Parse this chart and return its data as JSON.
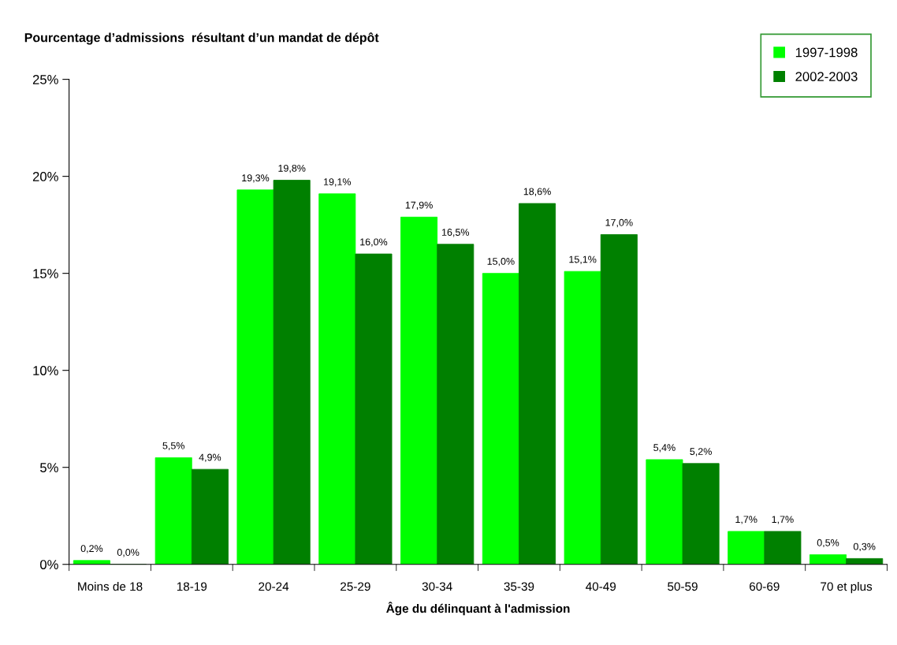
{
  "chart_data": {
    "type": "bar",
    "title": "Pourcentage d’admissions  résultant d’un mandat de dépôt",
    "xlabel": "Âge du délinquant à l'admission",
    "categories": [
      "Moins de 18",
      "18-19",
      "20-24",
      "25-29",
      "30-34",
      "35-39",
      "40-49",
      "50-59",
      "60-69",
      "70 et plus"
    ],
    "series": [
      {
        "name": "1997-1998",
        "color": "#00ff00",
        "values": [
          0.2,
          5.5,
          19.3,
          19.1,
          17.9,
          15.0,
          15.1,
          5.4,
          1.7,
          0.5
        ],
        "value_labels": [
          "0,2%",
          "5,5%",
          "19,3%",
          "19,1%",
          "17,9%",
          "15,0%",
          "15,1%",
          "5,4%",
          "1,7%",
          "0,5%"
        ]
      },
      {
        "name": "2002-2003",
        "color": "#008000",
        "values": [
          0.0,
          4.9,
          19.8,
          16.0,
          16.5,
          18.6,
          17.0,
          5.2,
          1.7,
          0.3
        ],
        "value_labels": [
          "0,0%",
          "4,9%",
          "19,8%",
          "16,0%",
          "16,5%",
          "18,6%",
          "17,0%",
          "5,2%",
          "1,7%",
          "0,3%"
        ]
      }
    ],
    "ylim": [
      0,
      25
    ],
    "yticks": [
      {
        "value": 0,
        "label": "0%"
      },
      {
        "value": 5,
        "label": "5%"
      },
      {
        "value": 10,
        "label": "10%"
      },
      {
        "value": 15,
        "label": "15%"
      },
      {
        "value": 20,
        "label": "20%"
      },
      {
        "value": 25,
        "label": "25%"
      }
    ],
    "grid": false,
    "legend": "top right"
  }
}
